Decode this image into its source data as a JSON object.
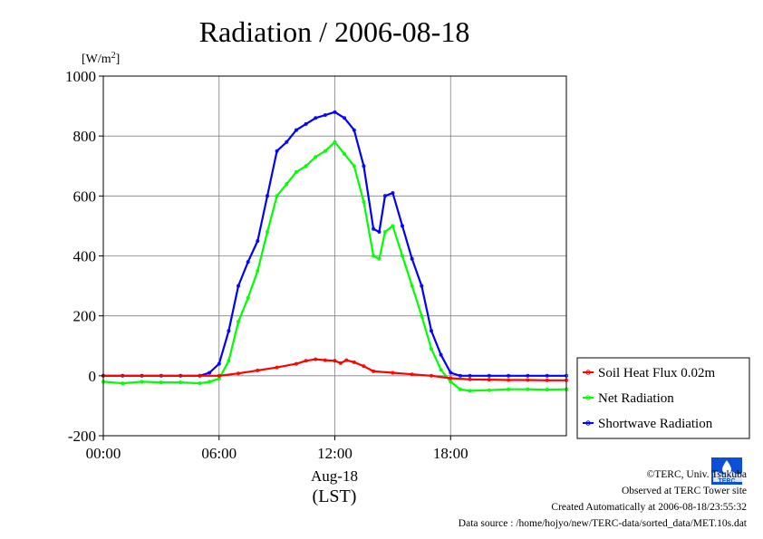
{
  "chart_data": {
    "type": "line",
    "title": "Radiation / 2006-08-18",
    "ylabel_unit": "[W/m",
    "ylabel_sup": "2",
    "ylabel_close": "]",
    "xlabel_date": "Aug-18",
    "xlabel_tz": "(LST)",
    "xlim": [
      0,
      24
    ],
    "ylim": [
      -200,
      1000
    ],
    "x_ticks": [
      0,
      6,
      12,
      18
    ],
    "x_tick_labels": [
      "00:00",
      "06:00",
      "12:00",
      "18:00"
    ],
    "y_ticks": [
      -200,
      0,
      200,
      400,
      600,
      800,
      1000
    ],
    "y_tick_labels": [
      "-200",
      "0",
      "200",
      "400",
      "600",
      "800",
      "1000"
    ],
    "grid": true,
    "legend_position": "right",
    "series": [
      {
        "name": "Soil Heat Flux 0.02m",
        "color": "#ff0000",
        "x": [
          0,
          5,
          6,
          7,
          8,
          9,
          10,
          10.5,
          11,
          11.5,
          12,
          12.3,
          12.6,
          13,
          13.5,
          14,
          15,
          16,
          17,
          18,
          19,
          20,
          21,
          22,
          23,
          24
        ],
        "y": [
          0,
          0,
          0,
          8,
          18,
          28,
          40,
          50,
          55,
          52,
          50,
          42,
          52,
          45,
          32,
          15,
          10,
          5,
          0,
          -8,
          -12,
          -13,
          -14,
          -14,
          -15,
          -15
        ]
      },
      {
        "name": "Net Radiation",
        "color": "#00ff00",
        "x": [
          0,
          1,
          2,
          3,
          4,
          5,
          5.5,
          6,
          6.5,
          7,
          7.5,
          8,
          8.5,
          9,
          9.5,
          10,
          10.5,
          11,
          11.5,
          12,
          12.5,
          13,
          13.5,
          14,
          14.3,
          14.6,
          15,
          15.5,
          16,
          16.5,
          17,
          17.5,
          18,
          18.5,
          19,
          20,
          21,
          22,
          23,
          24
        ],
        "y": [
          -20,
          -25,
          -20,
          -22,
          -22,
          -25,
          -20,
          -10,
          50,
          180,
          260,
          350,
          480,
          600,
          640,
          680,
          700,
          730,
          750,
          780,
          740,
          700,
          580,
          400,
          390,
          480,
          500,
          400,
          300,
          200,
          90,
          20,
          -20,
          -45,
          -50,
          -48,
          -45,
          -45,
          -46,
          -45
        ]
      },
      {
        "name": "Shortwave Radiation",
        "color": "#0000ff",
        "x": [
          0,
          1,
          2,
          3,
          4,
          5,
          5.5,
          6,
          6.5,
          7,
          7.5,
          8,
          8.5,
          9,
          9.5,
          10,
          10.5,
          11,
          11.5,
          12,
          12.5,
          13,
          13.5,
          14,
          14.3,
          14.6,
          15,
          15.5,
          16,
          16.5,
          17,
          17.5,
          18,
          18.5,
          19,
          20,
          21,
          22,
          23,
          24
        ],
        "y": [
          0,
          0,
          0,
          0,
          0,
          0,
          10,
          40,
          150,
          300,
          380,
          450,
          600,
          750,
          780,
          820,
          840,
          860,
          870,
          880,
          860,
          820,
          700,
          490,
          480,
          600,
          610,
          500,
          390,
          300,
          150,
          70,
          10,
          0,
          0,
          0,
          0,
          0,
          0,
          0
        ]
      }
    ]
  },
  "credits": {
    "copyright": "©TERC, Univ. Tsukuba",
    "site": "Observed at TERC Tower site",
    "created": "Created Automatically at 2006-08-18/23:55:32",
    "source": "Data source : /home/hojyo/new/TERC-data/sorted_data/MET.10s.dat"
  },
  "logo": {
    "text": "TERC",
    "color": "#0a4fd6"
  }
}
